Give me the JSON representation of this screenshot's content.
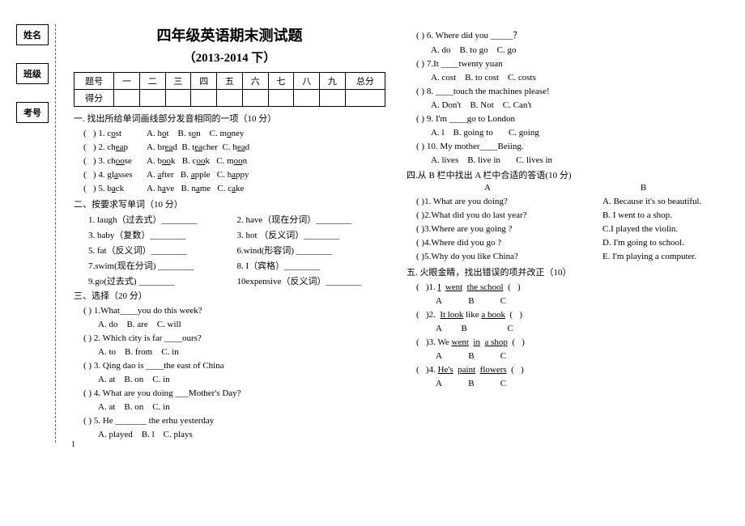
{
  "sidebar": {
    "name": "姓名",
    "class": "班级",
    "exam": "考号"
  },
  "header": {
    "title": "四年级英语期末测试题",
    "subtitle": "（2013-2014 下）"
  },
  "scoreTable": {
    "r1": [
      "题号",
      "一",
      "二",
      "三",
      "四",
      "五",
      "六",
      "七",
      "八",
      "九",
      "总分"
    ],
    "r2_label": "得分"
  },
  "sec1": {
    "title": "一. 找出所给单词画线部分发音相同的一项（10 分）",
    "items": [
      {
        "n": "(    ) 1. cost",
        "a": "A. hot",
        "b": "B. son",
        "c": "C. money"
      },
      {
        "n": "(    ) 2. cheap",
        "a": "A. bread",
        "b": "B. teacher",
        "c": "C. head"
      },
      {
        "n": "(    ) 3. choose",
        "a": "A. book",
        "b": "B. cook",
        "c": "C. moon"
      },
      {
        "n": "(    ) 4. glasses",
        "a": "A. after",
        "b": "B. apple",
        "c": "C. happy"
      },
      {
        "n": "(    ) 5. back",
        "a": "A. have",
        "b": "B. name",
        "c": "C. cake"
      }
    ]
  },
  "sec2": {
    "title": "二、按要求写单词（10 分）",
    "rows": [
      {
        "l": "1. laugh（过去式）________",
        "r": "2. have（现在分词）________"
      },
      {
        "l": "3. baby（复数）________",
        "r": "3. hot  （反义词）________"
      },
      {
        "l": "5. fat（反义词）________",
        "r": "6.wind(形容词) ________"
      },
      {
        "l": "7.swim(现在分词) ________",
        "r": "8. I（宾格）________"
      },
      {
        "l": "9.go(过去式) ________",
        "r": "10expensive（反义词）________"
      }
    ]
  },
  "sec3": {
    "title": "三、选择（20 分）",
    "items": [
      {
        "q": "(    ) 1.What____you do this week?",
        "a": "A. do",
        "b": "B. are",
        "c": "C. will"
      },
      {
        "q": "(    ) 2. Which city  is far ____ours?",
        "a": "A. to",
        "b": "B. from",
        "c": "C. in"
      },
      {
        "q": "(    ) 3. Qing dao is ____the east of China",
        "a": "A. at",
        "b": "B. on",
        "c": "C. in"
      },
      {
        "q": "(    ) 4. What are you doing ___Mother's Day?",
        "a": "A. at",
        "b": "B. on",
        "c": "C. in"
      },
      {
        "q": "(    ) 5. He _______ the erhu  yesterday",
        "a": "A. played",
        "b": "B. l",
        "c": "C. plays"
      }
    ]
  },
  "sec3r": {
    "items": [
      {
        "q": "(    ) 6. Where did you  _____？",
        "a": "A. do",
        "b": "B. to go",
        "c": "C. go"
      },
      {
        "q": "(    ) 7.It ____twenty yuan",
        "a": "A. cost",
        "b": "B. to cost",
        "c": "C. costs"
      },
      {
        "q": "(    ) 8. ____touch the machines please!",
        "a": "A. Don't",
        "b": "B. Not",
        "c": "C. Can't"
      },
      {
        "q": "(    ) 9. I'm ____go to London",
        "a": "A. l",
        "b": "B. going to",
        "c": "C. going"
      },
      {
        "q": "(    ) 10. My mother____Beiing.",
        "a": "A. lives",
        "b": "B. live in",
        "c": "C. lives in"
      }
    ]
  },
  "sec4": {
    "title": "四.从 B 栏中找出 A 栏中合适的答语(10 分)",
    "hA": "A",
    "hB": "B",
    "rows": [
      {
        "l": "(    )1. What are you doing?",
        "r": "A. Because it's so beautiful."
      },
      {
        "l": "(    )2.What did you do last year?",
        "r": "B. I went to a shop."
      },
      {
        "l": "(    )3.Where are you going ?",
        "r": "C.I played the violin."
      },
      {
        "l": "(    )4.Where did you go ?",
        "r": "D. I'm going to school."
      },
      {
        "l": "(    )5.Why do you like China?",
        "r": "E. I'm playing a computer."
      }
    ]
  },
  "sec5": {
    "title": "五. 火眼金睛，找出错误的项并改正（10）",
    "items": [
      "(    )1. I  went  the school  (    )",
      "(    )2.  It look like a book  (    )",
      "(    )3. We went  in  a shop  (    )",
      "(    )4. He's  paint  flowers  (    )"
    ],
    "abc": "A    B    C"
  },
  "pageNumber": "1"
}
